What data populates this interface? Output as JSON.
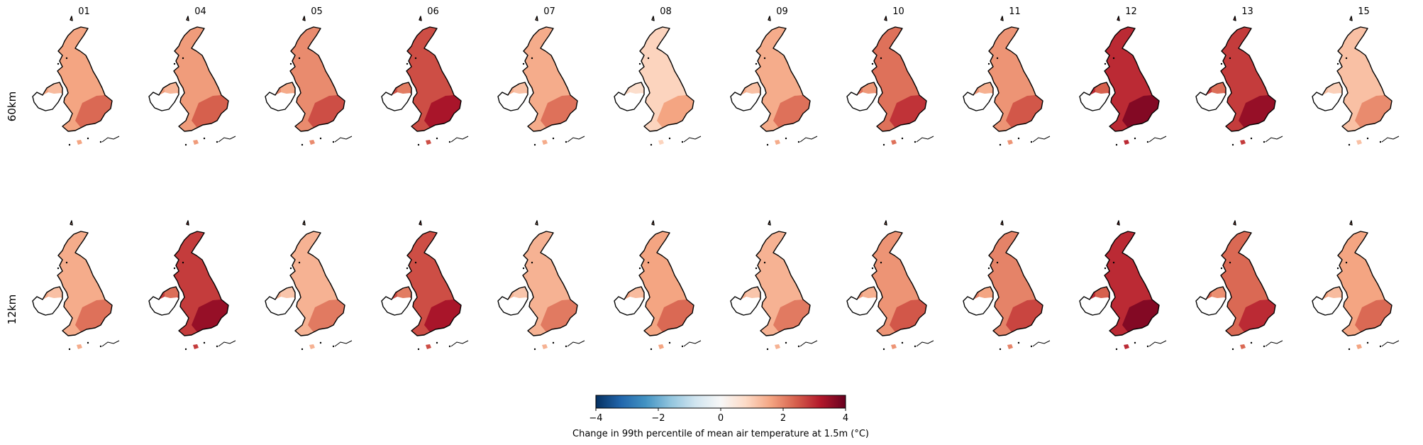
{
  "figure": {
    "columns": [
      "01",
      "04",
      "05",
      "06",
      "07",
      "08",
      "09",
      "10",
      "11",
      "12",
      "13",
      "15"
    ],
    "rows": [
      "60km",
      "12km"
    ],
    "intensity": {
      "60km": [
        1.6,
        1.7,
        1.9,
        2.6,
        1.5,
        0.9,
        1.5,
        2.2,
        1.8,
        3.0,
        2.8,
        1.2
      ],
      "12km": [
        1.5,
        2.8,
        1.4,
        2.6,
        1.4,
        1.6,
        1.4,
        1.8,
        2.0,
        3.0,
        2.3,
        1.6
      ]
    },
    "map_style": {
      "coastline_color": "#000000",
      "missing_color": "#ffffff"
    }
  },
  "colorbar": {
    "cmap": "RdBu_r",
    "vmin": -4,
    "vmax": 4,
    "ticks": [
      -4,
      -2,
      0,
      2,
      4
    ],
    "tick_labels": [
      "−4",
      "−2",
      "0",
      "2",
      "4"
    ],
    "label": "Change in 99th percentile of mean air temperature at 1.5m (°C)"
  }
}
